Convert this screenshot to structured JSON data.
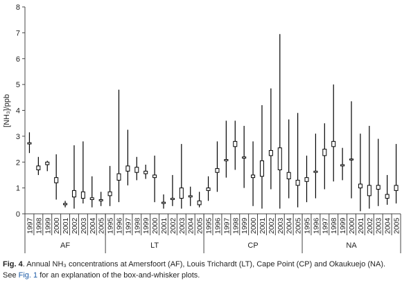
{
  "chart_data": {
    "type": "box",
    "ylabel": "[NH₃]/ppb",
    "ylim": [
      0,
      8
    ],
    "yticks": [
      0,
      1,
      2,
      3,
      4,
      5,
      6,
      7,
      8
    ],
    "color": "#000000",
    "box_fill": "#ffffff",
    "groups": [
      {
        "name": "AF",
        "categories": [
          "1997",
          "1998",
          "1999",
          "2000",
          "2001",
          "2002",
          "2003",
          "2004",
          "2005"
        ],
        "low": [
          2.35,
          1.5,
          1.65,
          0.55,
          0.25,
          0.2,
          0.4,
          0.25,
          0.3
        ],
        "q1": [
          2.7,
          1.7,
          1.9,
          1.2,
          0.35,
          0.65,
          0.6,
          0.55,
          0.5
        ],
        "q3": [
          2.75,
          1.85,
          2.0,
          1.4,
          0.4,
          0.9,
          0.85,
          0.62,
          0.55
        ],
        "high": [
          3.15,
          2.2,
          2.05,
          2.3,
          0.5,
          2.65,
          2.8,
          1.45,
          0.85
        ]
      },
      {
        "name": "LT",
        "categories": [
          "1995",
          "1996",
          "1997",
          "1998",
          "1999",
          "2000",
          "2001",
          "2002",
          "2003",
          "2004",
          "2005"
        ],
        "low": [
          0.3,
          0.45,
          1.1,
          1.3,
          1.35,
          0.45,
          0.2,
          0.3,
          0.2,
          0.3,
          0.25
        ],
        "q1": [
          0.7,
          1.3,
          1.65,
          1.6,
          1.55,
          1.4,
          0.4,
          0.55,
          0.6,
          0.65,
          0.35
        ],
        "q3": [
          0.85,
          1.55,
          1.85,
          1.8,
          1.65,
          1.5,
          0.45,
          0.6,
          1.0,
          0.7,
          0.5
        ],
        "high": [
          1.85,
          4.8,
          3.25,
          2.2,
          1.9,
          2.25,
          0.75,
          1.5,
          2.7,
          1.05,
          0.85
        ]
      },
      {
        "name": "CP",
        "categories": [
          "1995",
          "1996",
          "1997",
          "1998",
          "1999",
          "2000",
          "2001",
          "2002",
          "2003",
          "2004",
          "2005"
        ],
        "low": [
          0.5,
          0.85,
          1.4,
          1.7,
          1.0,
          0.3,
          0.2,
          0.95,
          0.2,
          0.6,
          0.25
        ],
        "q1": [
          0.9,
          1.6,
          2.05,
          2.6,
          2.15,
          1.4,
          1.45,
          2.25,
          1.7,
          1.35,
          1.1
        ],
        "q3": [
          1.0,
          1.75,
          2.1,
          2.8,
          2.2,
          1.5,
          2.05,
          2.45,
          2.55,
          1.6,
          1.3
        ],
        "high": [
          1.45,
          2.8,
          3.6,
          3.6,
          3.4,
          2.8,
          4.2,
          4.85,
          6.95,
          3.65,
          3.9
        ]
      },
      {
        "name": "NA",
        "categories": [
          "1995",
          "1996",
          "1997",
          "1998",
          "1999",
          "2000",
          "2001",
          "2002",
          "2003",
          "2004",
          "2005"
        ],
        "low": [
          0.45,
          0.6,
          0.95,
          1.25,
          1.3,
          0.6,
          0.1,
          0.2,
          0.3,
          0.35,
          0.4
        ],
        "q1": [
          1.25,
          1.6,
          2.25,
          2.6,
          1.85,
          2.08,
          1.0,
          0.7,
          0.95,
          0.6,
          0.9
        ],
        "q3": [
          1.4,
          1.65,
          2.5,
          2.8,
          1.9,
          2.12,
          1.15,
          1.1,
          1.1,
          0.75,
          1.1
        ],
        "high": [
          2.25,
          3.1,
          3.5,
          5.0,
          2.55,
          4.35,
          3.1,
          3.4,
          2.9,
          1.5,
          2.7
        ]
      }
    ]
  },
  "caption": {
    "label": "Fig. 4",
    "text": ". Annual NH₃ concentrations at Amersfoort (AF), Louis Trichardt (LT), Cape Point (CP) and Okaukuejo (NA).",
    "see": "See ",
    "link": "Fig. 1",
    "rest": " for an explanation of the box-and-whisker plots."
  }
}
